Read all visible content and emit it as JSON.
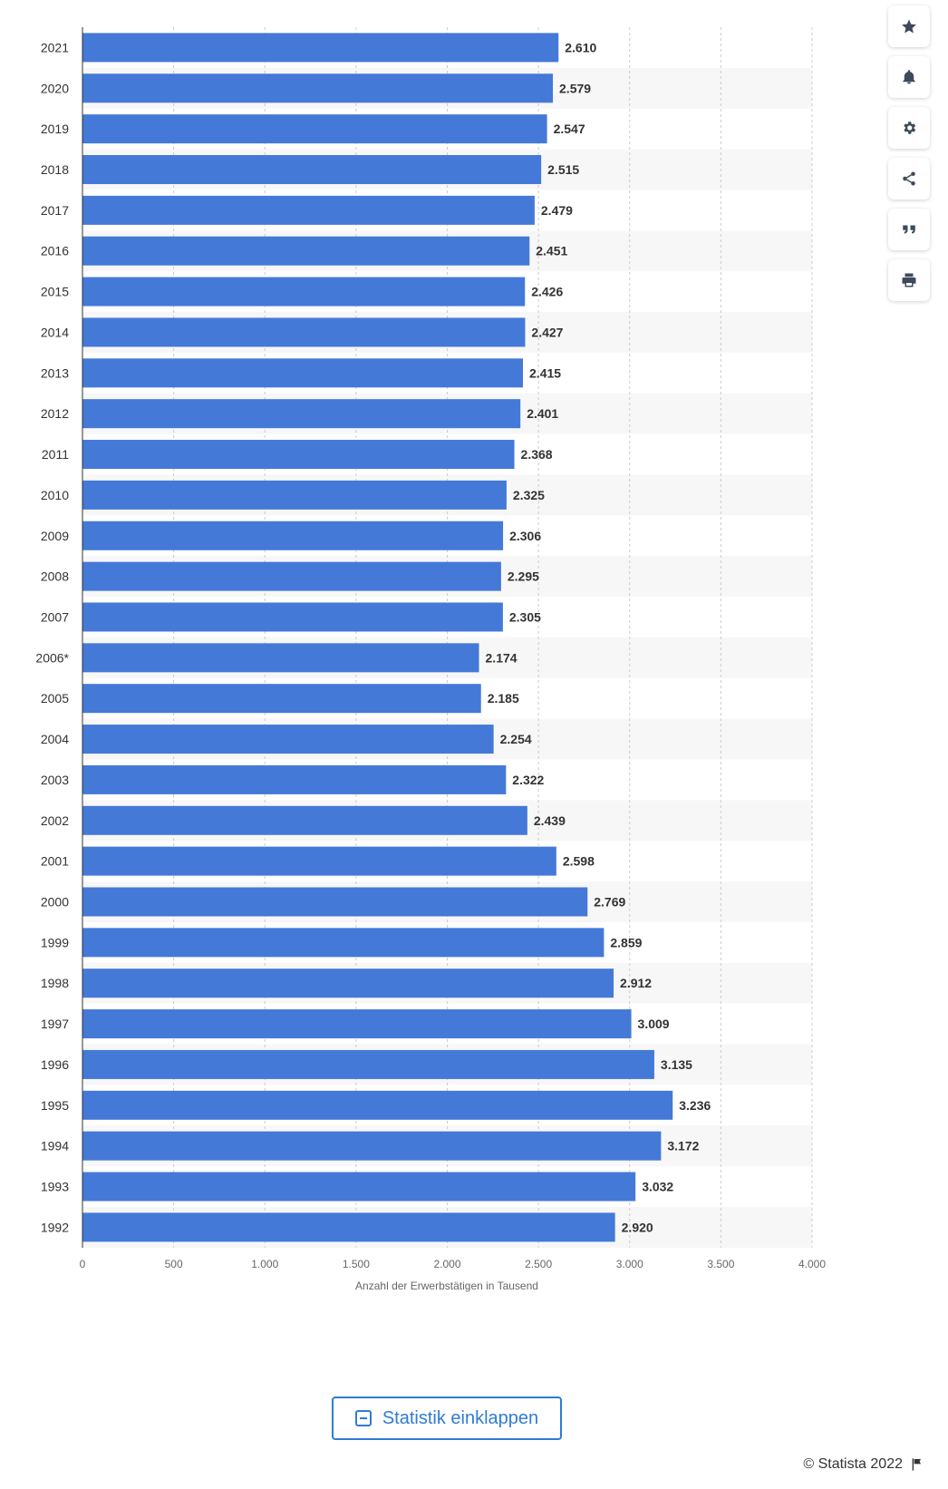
{
  "chart_data": {
    "type": "bar",
    "orientation": "horizontal",
    "categories": [
      "2021",
      "2020",
      "2019",
      "2018",
      "2017",
      "2016",
      "2015",
      "2014",
      "2013",
      "2012",
      "2011",
      "2010",
      "2009",
      "2008",
      "2007",
      "2006*",
      "2005",
      "2004",
      "2003",
      "2002",
      "2001",
      "2000",
      "1999",
      "1998",
      "1997",
      "1996",
      "1995",
      "1994",
      "1993",
      "1992"
    ],
    "values": [
      2610,
      2579,
      2547,
      2515,
      2479,
      2451,
      2426,
      2427,
      2415,
      2401,
      2368,
      2325,
      2306,
      2295,
      2305,
      2174,
      2185,
      2254,
      2322,
      2439,
      2598,
      2769,
      2859,
      2912,
      3009,
      3135,
      3236,
      3172,
      3032,
      2920
    ],
    "value_labels": [
      "2.610",
      "2.579",
      "2.547",
      "2.515",
      "2.479",
      "2.451",
      "2.426",
      "2.427",
      "2.415",
      "2.401",
      "2.368",
      "2.325",
      "2.306",
      "2.295",
      "2.305",
      "2.174",
      "2.185",
      "2.254",
      "2.322",
      "2.439",
      "2.598",
      "2.769",
      "2.859",
      "2.912",
      "3.009",
      "3.135",
      "3.236",
      "3.172",
      "3.032",
      "2.920"
    ],
    "xlabel": "Anzahl der Erwerbstätigen in Tausend",
    "xticks": [
      0,
      500,
      1000,
      1500,
      2000,
      2500,
      3000,
      3500,
      4000
    ],
    "xtick_labels": [
      "0",
      "500",
      "1.000",
      "1.500",
      "2.000",
      "2.500",
      "3.000",
      "3.500",
      "4.000"
    ],
    "xlim": [
      0,
      4000
    ],
    "grid": true,
    "bar_color": "#4479d8"
  },
  "toolbar": {
    "buttons": [
      {
        "name": "favorite-button",
        "icon": "star-icon"
      },
      {
        "name": "notification-button",
        "icon": "bell-icon"
      },
      {
        "name": "settings-button",
        "icon": "gear-icon"
      },
      {
        "name": "share-button",
        "icon": "share-icon"
      },
      {
        "name": "cite-button",
        "icon": "quote-icon"
      },
      {
        "name": "print-button",
        "icon": "print-icon"
      }
    ]
  },
  "footer": {
    "collapse_label": "Statistik einklappen",
    "copyright": "© Statista 2022"
  }
}
